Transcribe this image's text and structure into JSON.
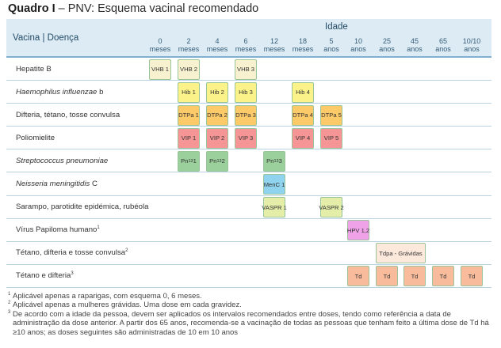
{
  "title": {
    "bold": "Quadro I",
    "rest": " – PNV: Esquema vacinal recomendado"
  },
  "header": {
    "vaccine_column": "Vacina | Doença",
    "age_title": "Idade",
    "ages": [
      {
        "num": "0",
        "unit": "meses"
      },
      {
        "num": "2",
        "unit": "meses"
      },
      {
        "num": "4",
        "unit": "meses"
      },
      {
        "num": "6",
        "unit": "meses"
      },
      {
        "num": "12",
        "unit": "meses"
      },
      {
        "num": "18",
        "unit": "meses"
      },
      {
        "num": "5",
        "unit": "anos"
      },
      {
        "num": "10",
        "unit": "anos"
      },
      {
        "num": "25",
        "unit": "anos"
      },
      {
        "num": "45",
        "unit": "anos"
      },
      {
        "num": "65",
        "unit": "anos"
      },
      {
        "num": "10/10",
        "unit": "anos"
      }
    ]
  },
  "colors": {
    "vhb": "#f7f1cf",
    "hib": "#fbf289",
    "dtpa": "#fcca69",
    "vip": "#f59595",
    "pn": "#9bcf9b",
    "menc": "#8fd3ee",
    "vaspr": "#e4eea9",
    "hpv": "#f0a2e8",
    "tdpa": "#fde9dc",
    "td": "#f8bb9c"
  },
  "rows": [
    {
      "label": "Hepatite B",
      "italic": "",
      "suffix": "",
      "sup": "",
      "doses": [
        {
          "col": 0,
          "text": "VHB 1",
          "color": "vhb"
        },
        {
          "col": 1,
          "text": "VHB 2",
          "color": "vhb"
        },
        {
          "col": 3,
          "text": "VHB 3",
          "color": "vhb"
        }
      ]
    },
    {
      "label": "",
      "italic": "Haemophilus influenzae",
      "suffix": " b",
      "sup": "",
      "doses": [
        {
          "col": 1,
          "text": "Hib 1",
          "color": "hib"
        },
        {
          "col": 2,
          "text": "Hib 2",
          "color": "hib"
        },
        {
          "col": 3,
          "text": "Hib 3",
          "color": "hib"
        },
        {
          "col": 5,
          "text": "Hib 4",
          "color": "hib"
        }
      ]
    },
    {
      "label": "Difteria, tétano, tosse convulsa",
      "italic": "",
      "suffix": "",
      "sup": "",
      "doses": [
        {
          "col": 1,
          "text": "DTPa 1",
          "color": "dtpa"
        },
        {
          "col": 2,
          "text": "DTPa 2",
          "color": "dtpa"
        },
        {
          "col": 3,
          "text": "DTPa 3",
          "color": "dtpa"
        },
        {
          "col": 5,
          "text": "DTPa 4",
          "color": "dtpa"
        },
        {
          "col": 6,
          "text": "DTPa 5",
          "color": "dtpa"
        }
      ]
    },
    {
      "label": "Poliomielite",
      "italic": "",
      "suffix": "",
      "sup": "",
      "doses": [
        {
          "col": 1,
          "text": "VIP 1",
          "color": "vip"
        },
        {
          "col": 2,
          "text": "VIP 2",
          "color": "vip"
        },
        {
          "col": 3,
          "text": "VIP 3",
          "color": "vip"
        },
        {
          "col": 5,
          "text": "VIP 4",
          "color": "vip"
        },
        {
          "col": 6,
          "text": "VIP 5",
          "color": "vip"
        }
      ]
    },
    {
      "label": "",
      "italic": "Streptococcus pneumoniae",
      "suffix": "",
      "sup": "",
      "doses": [
        {
          "col": 1,
          "text": "Pn",
          "sub": "13",
          "after": " 1",
          "color": "pn"
        },
        {
          "col": 2,
          "text": "Pn",
          "sub": "13",
          "after": " 2",
          "color": "pn"
        },
        {
          "col": 4,
          "text": "Pn",
          "sub": "13",
          "after": " 3",
          "color": "pn"
        }
      ]
    },
    {
      "label": "",
      "italic": "Neisseria meningitidis",
      "suffix": " C",
      "sup": "",
      "doses": [
        {
          "col": 4,
          "text": "MenC 1",
          "color": "menc"
        }
      ]
    },
    {
      "label": "Sarampo, parotidite epidémica, rubéola",
      "italic": "",
      "suffix": "",
      "sup": "",
      "doses": [
        {
          "col": 4,
          "text": "VASPR 1",
          "color": "vaspr"
        },
        {
          "col": 6,
          "text": "VASPR 2",
          "color": "vaspr"
        }
      ]
    },
    {
      "label": "Vírus Papiloma humano",
      "italic": "",
      "suffix": "",
      "sup": "1",
      "doses": [
        {
          "col": 7,
          "text": "HPV 1,2",
          "color": "hpv"
        }
      ]
    },
    {
      "label": "Tétano, difteria e tosse convulsa",
      "italic": "",
      "suffix": "",
      "sup": "2",
      "doses": [
        {
          "col": 8,
          "span": 2,
          "text": "Tdpa - Grávidas",
          "color": "tdpa"
        }
      ]
    },
    {
      "label": "Tétano e difteria",
      "italic": "",
      "suffix": "",
      "sup": "3",
      "doses": [
        {
          "col": 7,
          "text": "Td",
          "color": "td"
        },
        {
          "col": 8,
          "text": "Td",
          "color": "td"
        },
        {
          "col": 9,
          "text": "Td",
          "color": "td"
        },
        {
          "col": 10,
          "text": "Td",
          "color": "td"
        },
        {
          "col": 11,
          "text": "Td",
          "color": "td"
        }
      ]
    }
  ],
  "footnotes": [
    {
      "mark": "1",
      "text": "Aplicável apenas a raparigas, com esquema 0, 6 meses."
    },
    {
      "mark": "2",
      "text": "Aplicável apenas a mulheres grávidas. Uma dose em cada gravidez."
    },
    {
      "mark": "3",
      "text": "De acordo com a idade da pessoa, devem ser aplicados os intervalos recomendados entre doses, tendo como referência a data de administração da dose anterior. A partir dos 65 anos, recomenda-se a vacinação de todas as pessoas que tenham feito a última dose de Td há ≥10 anos; as doses seguintes são administradas de 10 em 10 anos"
    }
  ]
}
